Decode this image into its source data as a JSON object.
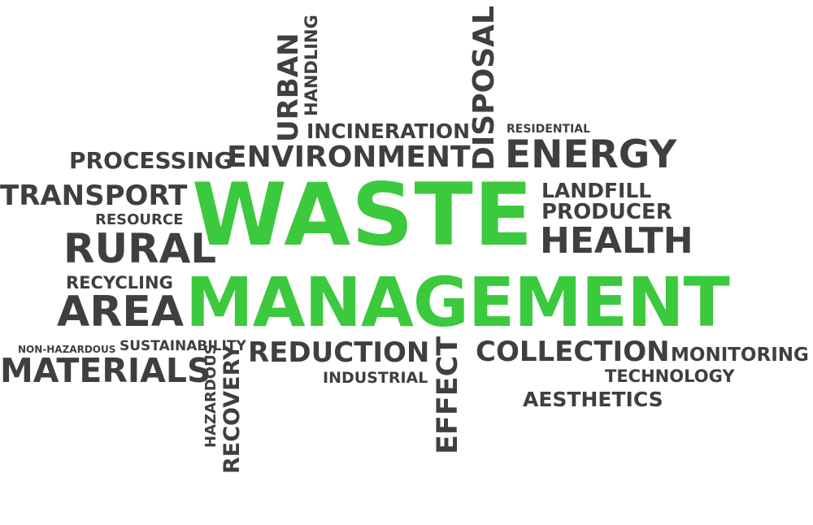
{
  "colors": {
    "primary": "#3bc93d",
    "secondary": "#3f3f3f",
    "background": "#ffffff"
  },
  "words": {
    "waste": "WASTE",
    "management": "MANAGEMENT",
    "urban": "URBAN",
    "handling": "HANDLING",
    "disposal": "DISPOSAL",
    "incineration": "INCINERATION",
    "residential": "RESIDENTIAL",
    "processing": "PROCESSING",
    "environment": "ENVIRONMENT",
    "energy": "ENERGY",
    "transport": "TRANSPORT",
    "landfill": "LANDFILL",
    "resource": "RESOURCE",
    "producer": "PRODUCER",
    "rural": "RURAL",
    "health": "HEALTH",
    "recycling": "RECYCLING",
    "area": "AREA",
    "non_hazardous": "NON-HAZARDOUS",
    "sustainability": "SUSTAINABILITY",
    "reduction": "REDUCTION",
    "collection": "COLLECTION",
    "monitoring": "MONITORING",
    "materials": "MATERIALS",
    "industrial": "INDUSTRIAL",
    "technology": "TECHNOLOGY",
    "aesthetics": "AESTHETICS",
    "hazardous": "HAZARDOUS",
    "recovery": "RECOVERY",
    "effect": "EFFECT"
  }
}
